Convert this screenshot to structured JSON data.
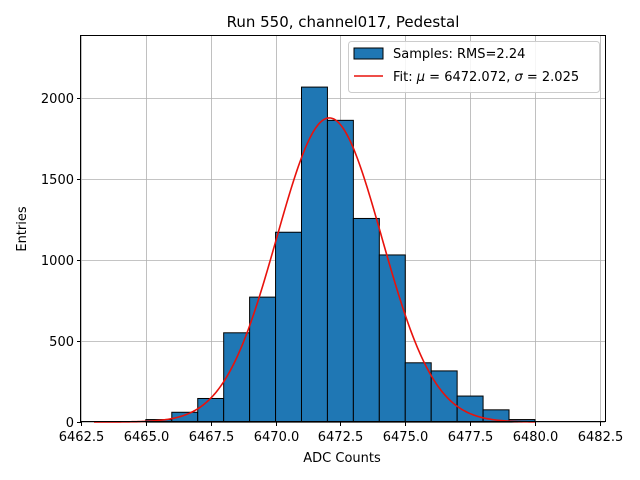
{
  "chart_data": {
    "type": "bar",
    "title": "Run 550, channel017, Pedestal",
    "xlabel": "ADC Counts",
    "ylabel": "Entries",
    "xlim": [
      6462.5,
      6482.7
    ],
    "ylim": [
      0,
      2380
    ],
    "x_ticks": [
      6462.5,
      6465.0,
      6467.5,
      6470.0,
      6472.5,
      6475.0,
      6477.5,
      6480.0,
      6482.5
    ],
    "x_tick_labels": [
      "6462.5",
      "6465.0",
      "6467.5",
      "6470.0",
      "6472.5",
      "6475.0",
      "6477.5",
      "6480.0",
      "6482.5"
    ],
    "y_ticks": [
      0,
      500,
      1000,
      1500,
      2000
    ],
    "y_tick_labels": [
      "0",
      "500",
      "1000",
      "1500",
      "2000"
    ],
    "grid": true,
    "legend_position": "top-right",
    "histogram": {
      "name": "Samples: RMS=2.24",
      "color": "#1f77b4",
      "edge_color": "#000000",
      "bins": [
        {
          "x0": 6465,
          "x1": 6466,
          "count": 15
        },
        {
          "x0": 6466,
          "x1": 6467,
          "count": 60
        },
        {
          "x0": 6467,
          "x1": 6468,
          "count": 145
        },
        {
          "x0": 6468,
          "x1": 6469,
          "count": 550
        },
        {
          "x0": 6469,
          "x1": 6470,
          "count": 770
        },
        {
          "x0": 6470,
          "x1": 6471,
          "count": 1170
        },
        {
          "x0": 6471,
          "x1": 6472,
          "count": 2065
        },
        {
          "x0": 6472,
          "x1": 6473,
          "count": 1860
        },
        {
          "x0": 6473,
          "x1": 6474,
          "count": 1255
        },
        {
          "x0": 6474,
          "x1": 6475,
          "count": 1030
        },
        {
          "x0": 6475,
          "x1": 6476,
          "count": 365
        },
        {
          "x0": 6476,
          "x1": 6477,
          "count": 315
        },
        {
          "x0": 6477,
          "x1": 6478,
          "count": 160
        },
        {
          "x0": 6478,
          "x1": 6479,
          "count": 75
        },
        {
          "x0": 6479,
          "x1": 6480,
          "count": 15
        }
      ]
    },
    "fit": {
      "name": "Fit: μ = 6472.072, σ = 2.025",
      "legend_prefix": "Fit: ",
      "legend_mu": "μ",
      "legend_middle": " = 6472.072, ",
      "legend_sigma": "σ",
      "legend_suffix": " = 2.025",
      "mu": 6472.072,
      "sigma": 2.025,
      "amplitude": 1875,
      "x_range": [
        6463,
        6480
      ],
      "color": "#e8120c"
    }
  }
}
